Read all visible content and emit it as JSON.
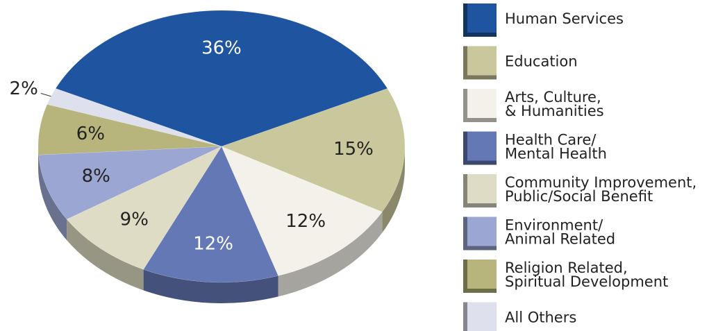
{
  "chart_data": {
    "type": "pie",
    "categories": [
      "Human Services",
      "Education",
      "Arts, Culture,\n& Humanities",
      "Health Care/\nMental Health",
      "Community Improvement,\nPublic/Social Benefit",
      "Environment/\nAnimal Related",
      "Religion Related,\nSpiritual Development",
      "All Others"
    ],
    "values": [
      36,
      15,
      12,
      12,
      9,
      8,
      6,
      2
    ],
    "value_labels": [
      "36%",
      "15%",
      "12%",
      "12%",
      "9%",
      "8%",
      "6%",
      "2%"
    ],
    "colors": [
      "#1f55a0",
      "#c9c89c",
      "#f3f1ea",
      "#6478b5",
      "#dedcc4",
      "#9ba6d3",
      "#b7b57c",
      "#dfe0ee"
    ],
    "legend": "right"
  }
}
